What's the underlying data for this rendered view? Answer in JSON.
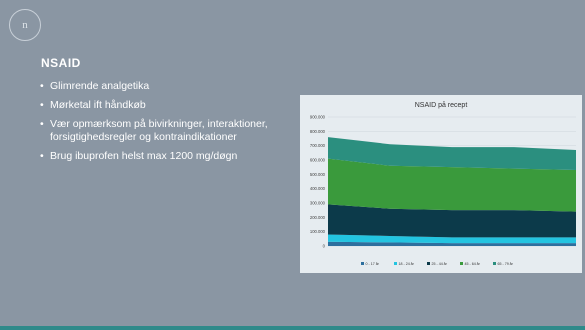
{
  "slide": {
    "logo_text": "n",
    "title": "NSAID",
    "bullets": [
      "Glimrende analgetika",
      "Mørketal ift håndkøb",
      "Vær opmærksom på bivirkninger, interaktioner, forsigtighedsregler og kontraindikationer",
      "Brug ibuprofen helst max 1200 mg/døgn"
    ]
  },
  "colors": {
    "background": "#8a96a3",
    "accent": "#2f8a8a",
    "series": [
      "#2d6f9e",
      "#23c4e0",
      "#0c3a4a",
      "#3a9a3c",
      "#2b8f7f"
    ]
  },
  "chart_data": {
    "type": "area",
    "stacked": true,
    "title": "NSAID på recept",
    "x": [
      "",
      "",
      "",
      "",
      ""
    ],
    "ylim": [
      0,
      900000
    ],
    "yticks": [
      "0",
      "100.000",
      "200.000",
      "300.000",
      "400.000",
      "500.000",
      "600.000",
      "700.000",
      "800.000",
      "900.000"
    ],
    "grid": true,
    "legend_position": "bottom",
    "series": [
      {
        "name": "0 - 17 år",
        "values": [
          30000,
          25000,
          20000,
          20000,
          20000
        ]
      },
      {
        "name": "18 - 24 år",
        "values": [
          50000,
          45000,
          40000,
          40000,
          40000
        ]
      },
      {
        "name": "25 - 44 år",
        "values": [
          210000,
          190000,
          190000,
          190000,
          180000
        ]
      },
      {
        "name": "45 - 64 år",
        "values": [
          320000,
          300000,
          300000,
          290000,
          290000
        ]
      },
      {
        "name": "65 - 79 år",
        "values": [
          150000,
          150000,
          140000,
          150000,
          140000
        ]
      }
    ]
  }
}
